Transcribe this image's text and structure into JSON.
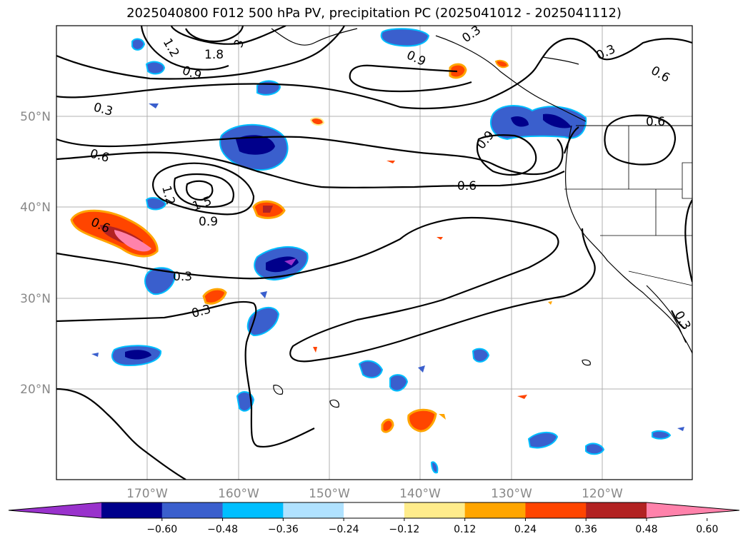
{
  "title": "2025040800 F012 500 hPa PV, precipitation PC (2025041012 - 2025041112)",
  "map": {
    "lon_labels": [
      "170°W",
      "160°W",
      "150°W",
      "140°W",
      "130°W",
      "120°W"
    ],
    "lat_labels": [
      "50°N",
      "40°N",
      "30°N",
      "20°N"
    ],
    "contour_labels": [
      "1.2",
      "1.8",
      "3",
      "0.9",
      "0.3",
      "0.9",
      "0.3",
      "0.6",
      "0.3",
      "0.6",
      "0.6",
      "0.9",
      "0.6",
      "1.2",
      "1.5",
      "0.9",
      "0.6",
      "0.3",
      "0.3",
      "0.3"
    ]
  },
  "colorbar": {
    "ticks": [
      "−0.60",
      "−0.48",
      "−0.36",
      "−0.24",
      "−0.12",
      "0.12",
      "0.24",
      "0.36",
      "0.48",
      "0.60"
    ],
    "colors": [
      "#9932cc",
      "#00008b",
      "#3a5fcd",
      "#00bfff",
      "#b0e2ff",
      "#ffffff",
      "#ffec8b",
      "#ffa500",
      "#ff4500",
      "#b22222",
      "#ff82ab"
    ]
  }
}
